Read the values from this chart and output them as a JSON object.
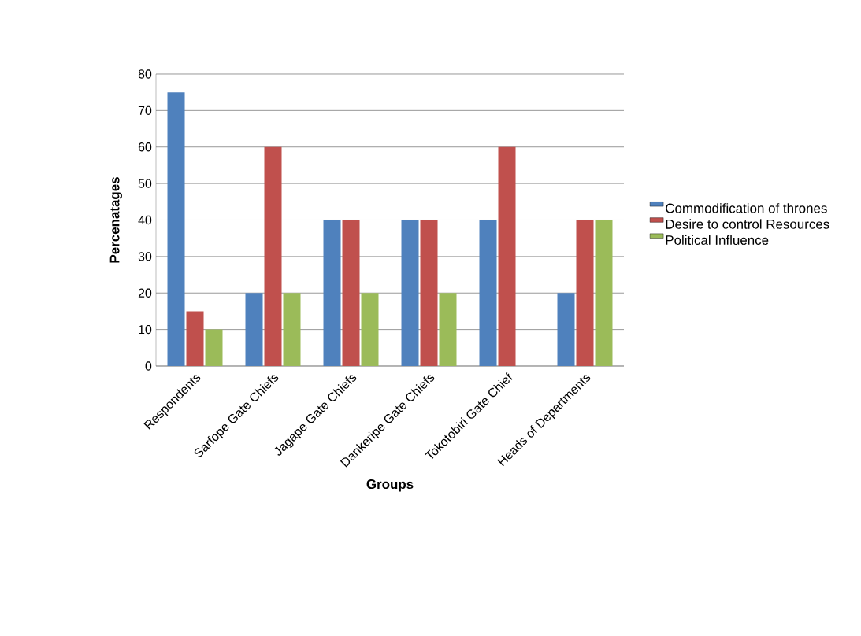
{
  "chart_data": {
    "type": "bar",
    "xlabel": "Groups",
    "ylabel": "Percenatages",
    "categories": [
      "Respondents",
      "Sarfope Gate Chiefs",
      "Jagape Gate Chiefs",
      "Dankeripe Gate Chiefs",
      "Tokotobiri Gate Chief",
      "Heads of Departments"
    ],
    "series": [
      {
        "name": "Commodification of thrones",
        "color": "#4f81bd",
        "values": [
          75,
          20,
          40,
          40,
          40,
          20
        ]
      },
      {
        "name": "Desire to control Resources",
        "color": "#c0504d",
        "values": [
          15,
          60,
          40,
          40,
          60,
          40
        ]
      },
      {
        "name": "Political Influence",
        "color": "#9bbb59",
        "values": [
          10,
          20,
          20,
          20,
          0,
          40
        ]
      }
    ],
    "ylim": [
      0,
      80
    ],
    "yticks": [
      0,
      10,
      20,
      30,
      40,
      50,
      60,
      70,
      80
    ],
    "grid": "y",
    "legend": "right"
  }
}
